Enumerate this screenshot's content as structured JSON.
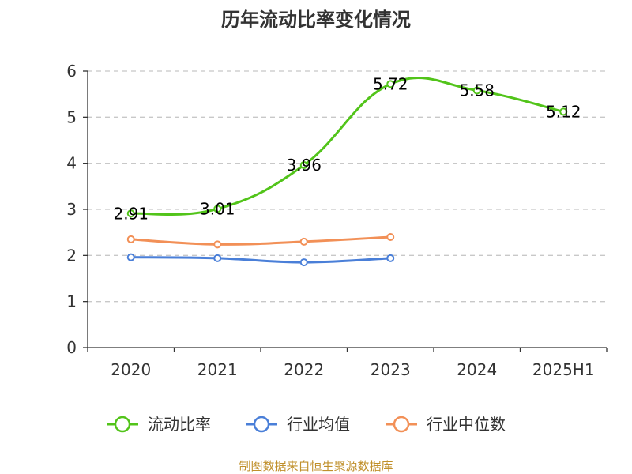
{
  "chart_data": {
    "type": "line",
    "title": "历年流动比率变化情况",
    "categories": [
      "2020",
      "2021",
      "2022",
      "2023",
      "2024",
      "2025H1"
    ],
    "ylim": [
      0,
      6
    ],
    "yticks": [
      0,
      1,
      2,
      3,
      4,
      5,
      6
    ],
    "grid": true,
    "legend_position": "bottom",
    "series": [
      {
        "name": "流动比率",
        "color": "#52c41a",
        "values": [
          2.91,
          3.01,
          3.96,
          5.72,
          5.58,
          5.12
        ],
        "labels": [
          "2.91",
          "3.01",
          "3.96",
          "5.72",
          "5.58",
          "5.12"
        ]
      },
      {
        "name": "行业均值",
        "color": "#4a7fd8",
        "values": [
          1.96,
          1.94,
          1.85,
          1.94,
          null,
          null
        ]
      },
      {
        "name": "行业中位数",
        "color": "#f29057",
        "values": [
          2.35,
          2.24,
          2.3,
          2.4,
          null,
          null
        ]
      }
    ],
    "source": "制图数据来自恒生聚源数据库"
  }
}
